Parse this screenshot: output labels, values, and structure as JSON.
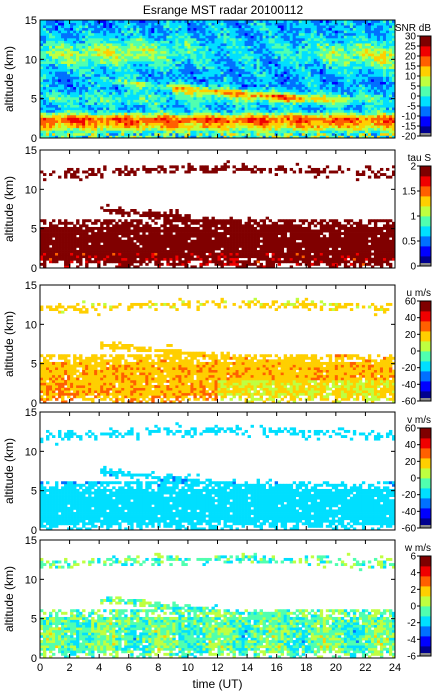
{
  "title": "Esrange MST radar 20100112",
  "xlabel": "time (UT)",
  "x_ticks": [
    "0",
    "2",
    "4",
    "6",
    "8",
    "10",
    "12",
    "14",
    "16",
    "18",
    "20",
    "22",
    "24"
  ],
  "y_ticks": [
    "0",
    "5",
    "10",
    "15"
  ],
  "chart_data": [
    {
      "type": "heatmap",
      "ylabel": "altitude (km)",
      "xlim": [
        0,
        24
      ],
      "ylim": [
        0,
        15
      ],
      "colorbar": {
        "label": "SNR dB",
        "min": -20,
        "max": 30,
        "ticks": [
          "30",
          "25",
          "20",
          "15",
          "10",
          "5",
          "0",
          "-5",
          "-10",
          "-15",
          "-20"
        ]
      },
      "palette": [
        "#00008f",
        "#0000ff",
        "#0070ff",
        "#00dfff",
        "#50ffaf",
        "#bfff40",
        "#ffcf00",
        "#ff6000",
        "#f00000",
        "#800000"
      ],
      "description_levels": {
        "upper_band_10_15km": 3,
        "layer_0_3km": 25,
        "background": -5
      }
    },
    {
      "type": "heatmap",
      "ylabel": "altitude (km)",
      "xlim": [
        0,
        24
      ],
      "ylim": [
        0,
        15
      ],
      "colorbar": {
        "label": "tau S",
        "min": 0,
        "max": 2,
        "ticks": [
          "2",
          "1.5",
          "1",
          "0.5",
          "0"
        ]
      },
      "palette": [
        "#00008f",
        "#0000ff",
        "#0070ff",
        "#00dfff",
        "#50ffaf",
        "#bfff40",
        "#ffcf00",
        "#ff6000",
        "#f00000",
        "#800000"
      ]
    },
    {
      "type": "heatmap",
      "ylabel": "altitude (km)",
      "xlim": [
        0,
        24
      ],
      "ylim": [
        0,
        15
      ],
      "colorbar": {
        "label": "u m/s",
        "min": -60,
        "max": 60,
        "ticks": [
          "60",
          "40",
          "20",
          "0",
          "-20",
          "-40",
          "-60"
        ]
      },
      "palette": [
        "#00008f",
        "#0000ff",
        "#0070ff",
        "#00dfff",
        "#50ffaf",
        "#bfff40",
        "#ffcf00",
        "#ff6000",
        "#f00000",
        "#800000"
      ]
    },
    {
      "type": "heatmap",
      "ylabel": "altitude (km)",
      "xlim": [
        0,
        24
      ],
      "ylim": [
        0,
        15
      ],
      "colorbar": {
        "label": "v m/s",
        "min": -60,
        "max": 60,
        "ticks": [
          "60",
          "40",
          "20",
          "0",
          "-20",
          "-40",
          "-60"
        ]
      },
      "palette": [
        "#00008f",
        "#0000ff",
        "#0070ff",
        "#00dfff",
        "#50ffaf",
        "#bfff40",
        "#ffcf00",
        "#ff6000",
        "#f00000",
        "#800000"
      ]
    },
    {
      "type": "heatmap",
      "ylabel": "altitude (km)",
      "xlim": [
        0,
        24
      ],
      "ylim": [
        0,
        15
      ],
      "colorbar": {
        "label": "w m/s",
        "min": -6,
        "max": 6,
        "ticks": [
          "6",
          "4",
          "2",
          "0",
          "-2",
          "-4",
          "-6"
        ]
      },
      "palette": [
        "#00008f",
        "#0000ff",
        "#0070ff",
        "#00dfff",
        "#50ffaf",
        "#bfff40",
        "#ffcf00",
        "#ff6000",
        "#f00000",
        "#800000"
      ]
    }
  ]
}
